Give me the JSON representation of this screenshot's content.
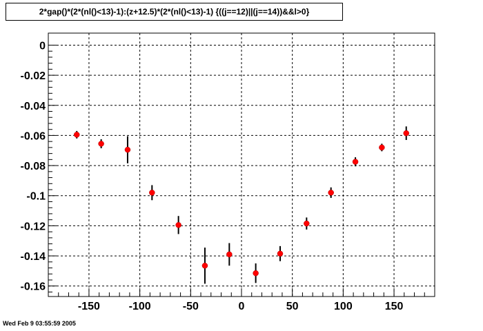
{
  "title": "2*gap()*(2*(nl()<13)-1):(z+12.5)*(2*(nl()<13)-1) {((j==12)||(j==14))&&l>0}",
  "timestamp": "Wed Feb  9 03:55:59 2005",
  "colors": {
    "marker": "#ff0000",
    "errorbar": "#000000",
    "grid": "#000000",
    "frame": "#000000"
  },
  "chart_data": {
    "type": "scatter",
    "title": "",
    "xlabel": "",
    "ylabel": "",
    "xlim": [
      -190,
      190
    ],
    "ylim": [
      -0.167,
      0.008
    ],
    "grid": true,
    "x_ticks": [
      -150,
      -100,
      -50,
      0,
      50,
      100,
      150
    ],
    "x_tick_labels": [
      "-150",
      "-100",
      "-50",
      "0",
      "50",
      "100",
      "150"
    ],
    "y_ticks": [
      0,
      -0.02,
      -0.04,
      -0.06,
      -0.08,
      -0.1,
      -0.12,
      -0.14,
      -0.16
    ],
    "y_tick_labels": [
      "0",
      "-0.02",
      "-0.04",
      "-0.06",
      "-0.08",
      "-0.1",
      "-0.12",
      "-0.14",
      "-0.16"
    ],
    "series": [
      {
        "x": [
          -162,
          -138,
          -112,
          -88,
          -62,
          -36,
          -12,
          14,
          38,
          64,
          88,
          112,
          138,
          162
        ],
        "y": [
          -0.0595,
          -0.0655,
          -0.0695,
          -0.098,
          -0.1195,
          -0.1465,
          -0.139,
          -0.1515,
          -0.1385,
          -0.1185,
          -0.098,
          -0.0775,
          -0.068,
          -0.0585
        ],
        "yerr": [
          0.0025,
          0.003,
          0.009,
          0.005,
          0.006,
          0.012,
          0.0075,
          0.0065,
          0.005,
          0.004,
          0.0035,
          0.003,
          0.0025,
          0.0045
        ]
      }
    ]
  }
}
